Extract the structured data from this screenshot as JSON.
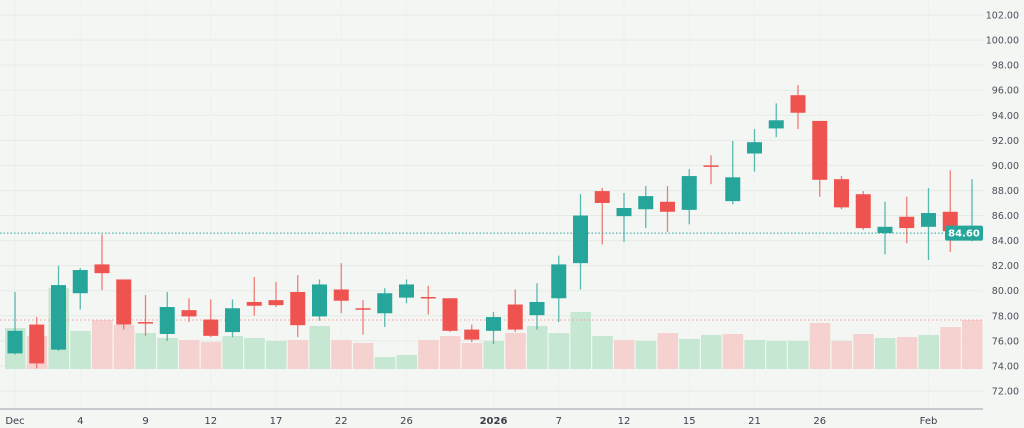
{
  "chart_data": {
    "type": "candlestick",
    "title": "",
    "xlabel": "",
    "ylabel": "",
    "ylim": [
      71,
      102.5
    ],
    "y_ticks": [
      "72.00",
      "74.00",
      "76.00",
      "78.00",
      "80.00",
      "82.00",
      "84.00",
      "86.00",
      "88.00",
      "90.00",
      "92.00",
      "94.00",
      "96.00",
      "98.00",
      "100.00",
      "102.00"
    ],
    "x_ticks": [
      {
        "index": 0,
        "label": "Dec"
      },
      {
        "index": 3,
        "label": "4"
      },
      {
        "index": 6,
        "label": "9"
      },
      {
        "index": 9,
        "label": "12"
      },
      {
        "index": 12,
        "label": "17"
      },
      {
        "index": 15,
        "label": "22"
      },
      {
        "index": 18,
        "label": "26"
      },
      {
        "index": 22,
        "label": "2026"
      },
      {
        "index": 25,
        "label": "7"
      },
      {
        "index": 28,
        "label": "12"
      },
      {
        "index": 31,
        "label": "15"
      },
      {
        "index": 34,
        "label": "21"
      },
      {
        "index": 37,
        "label": "26"
      },
      {
        "index": 42,
        "label": "Feb"
      }
    ],
    "grid": true,
    "last_price": 84.6,
    "last_price_label": "84.60",
    "colors": {
      "up": "#26a69a",
      "down": "#ef5350",
      "volume_up": "#c6e7d2",
      "volume_down": "#f5d2d0",
      "background": "#f3f6f3"
    },
    "candles": [
      {
        "o": 75.0,
        "h": 79.9,
        "l": 74.9,
        "c": 76.8,
        "v": 41,
        "vd": "up"
      },
      {
        "o": 77.3,
        "h": 77.9,
        "l": 73.8,
        "c": 74.2,
        "v": 33,
        "vd": "down"
      },
      {
        "o": 75.3,
        "h": 82.0,
        "l": 75.2,
        "c": 80.45,
        "v": 81,
        "vd": "up"
      },
      {
        "o": 79.8,
        "h": 81.8,
        "l": 78.5,
        "c": 81.65,
        "v": 38,
        "vd": "up"
      },
      {
        "o": 82.1,
        "h": 84.5,
        "l": 80.05,
        "c": 81.4,
        "v": 49,
        "vd": "down"
      },
      {
        "o": 80.9,
        "h": 80.9,
        "l": 76.9,
        "c": 77.3,
        "v": 44,
        "vd": "down"
      },
      {
        "o": 77.5,
        "h": 79.65,
        "l": 76.4,
        "c": 77.4,
        "v": 36,
        "vd": "up"
      },
      {
        "o": 76.55,
        "h": 79.9,
        "l": 76.0,
        "c": 78.7,
        "v": 31,
        "vd": "up"
      },
      {
        "o": 78.45,
        "h": 79.4,
        "l": 77.5,
        "c": 77.95,
        "v": 29,
        "vd": "down"
      },
      {
        "o": 77.7,
        "h": 79.3,
        "l": 76.3,
        "c": 76.4,
        "v": 27,
        "vd": "down"
      },
      {
        "o": 76.7,
        "h": 79.3,
        "l": 76.3,
        "c": 78.6,
        "v": 33,
        "vd": "up"
      },
      {
        "o": 79.1,
        "h": 81.1,
        "l": 78.0,
        "c": 78.8,
        "v": 31,
        "vd": "up"
      },
      {
        "o": 79.25,
        "h": 80.7,
        "l": 78.7,
        "c": 78.85,
        "v": 28,
        "vd": "up"
      },
      {
        "o": 79.9,
        "h": 81.25,
        "l": 76.3,
        "c": 77.25,
        "v": 29,
        "vd": "down"
      },
      {
        "o": 77.95,
        "h": 80.9,
        "l": 77.6,
        "c": 80.5,
        "v": 43,
        "vd": "up"
      },
      {
        "o": 80.1,
        "h": 82.2,
        "l": 78.2,
        "c": 79.2,
        "v": 29,
        "vd": "down"
      },
      {
        "o": 78.6,
        "h": 79.25,
        "l": 76.5,
        "c": 78.5,
        "v": 26,
        "vd": "down"
      },
      {
        "o": 78.2,
        "h": 80.2,
        "l": 77.1,
        "c": 79.8,
        "v": 12,
        "vd": "up"
      },
      {
        "o": 79.45,
        "h": 80.9,
        "l": 79.0,
        "c": 80.5,
        "v": 14,
        "vd": "up"
      },
      {
        "o": 79.5,
        "h": 80.4,
        "l": 78.1,
        "c": 79.45,
        "v": 29,
        "vd": "down"
      },
      {
        "o": 79.4,
        "h": 79.4,
        "l": 76.7,
        "c": 76.8,
        "v": 33,
        "vd": "down"
      },
      {
        "o": 76.9,
        "h": 77.3,
        "l": 75.9,
        "c": 76.1,
        "v": 26,
        "vd": "down"
      },
      {
        "o": 76.8,
        "h": 78.3,
        "l": 75.75,
        "c": 77.9,
        "v": 28,
        "vd": "up"
      },
      {
        "o": 78.9,
        "h": 80.1,
        "l": 76.7,
        "c": 76.9,
        "v": 36,
        "vd": "down"
      },
      {
        "o": 78.05,
        "h": 80.6,
        "l": 76.9,
        "c": 79.1,
        "v": 43,
        "vd": "up"
      },
      {
        "o": 79.4,
        "h": 82.8,
        "l": 77.5,
        "c": 82.1,
        "v": 36,
        "vd": "up"
      },
      {
        "o": 82.2,
        "h": 87.7,
        "l": 80.1,
        "c": 86.0,
        "v": 57,
        "vd": "up"
      },
      {
        "o": 87.95,
        "h": 88.2,
        "l": 83.7,
        "c": 87.0,
        "v": 33,
        "vd": "up"
      },
      {
        "o": 85.95,
        "h": 87.8,
        "l": 83.9,
        "c": 86.6,
        "v": 29,
        "vd": "down"
      },
      {
        "o": 86.5,
        "h": 88.35,
        "l": 85.0,
        "c": 87.55,
        "v": 28,
        "vd": "up"
      },
      {
        "o": 87.1,
        "h": 88.35,
        "l": 84.7,
        "c": 86.3,
        "v": 36,
        "vd": "down"
      },
      {
        "o": 86.45,
        "h": 89.7,
        "l": 85.3,
        "c": 89.15,
        "v": 30,
        "vd": "up"
      },
      {
        "o": 90.0,
        "h": 90.8,
        "l": 88.5,
        "c": 89.95,
        "v": 34,
        "vd": "up"
      },
      {
        "o": 87.15,
        "h": 91.95,
        "l": 86.9,
        "c": 89.05,
        "v": 35,
        "vd": "down"
      },
      {
        "o": 90.95,
        "h": 92.9,
        "l": 89.5,
        "c": 91.85,
        "v": 29,
        "vd": "up"
      },
      {
        "o": 92.95,
        "h": 94.95,
        "l": 92.25,
        "c": 93.6,
        "v": 28,
        "vd": "up"
      },
      {
        "o": 95.6,
        "h": 96.4,
        "l": 92.9,
        "c": 94.2,
        "v": 28,
        "vd": "up"
      },
      {
        "o": 93.55,
        "h": 93.55,
        "l": 87.5,
        "c": 88.85,
        "v": 46,
        "vd": "down"
      },
      {
        "o": 88.9,
        "h": 89.15,
        "l": 86.5,
        "c": 86.65,
        "v": 28,
        "vd": "down"
      },
      {
        "o": 87.7,
        "h": 87.95,
        "l": 84.85,
        "c": 85.0,
        "v": 35,
        "vd": "down"
      },
      {
        "o": 84.6,
        "h": 87.1,
        "l": 82.9,
        "c": 85.1,
        "v": 31,
        "vd": "up"
      },
      {
        "o": 85.9,
        "h": 87.5,
        "l": 83.8,
        "c": 85.0,
        "v": 32,
        "vd": "down"
      },
      {
        "o": 85.1,
        "h": 88.2,
        "l": 82.45,
        "c": 86.2,
        "v": 34,
        "vd": "up"
      },
      {
        "o": 86.3,
        "h": 89.6,
        "l": 83.1,
        "c": 84.75,
        "v": 42,
        "vd": "down"
      },
      {
        "o": 84.6,
        "h": 88.9,
        "l": 83.95,
        "c": 84.6,
        "v": 49,
        "vd": "down"
      }
    ]
  }
}
